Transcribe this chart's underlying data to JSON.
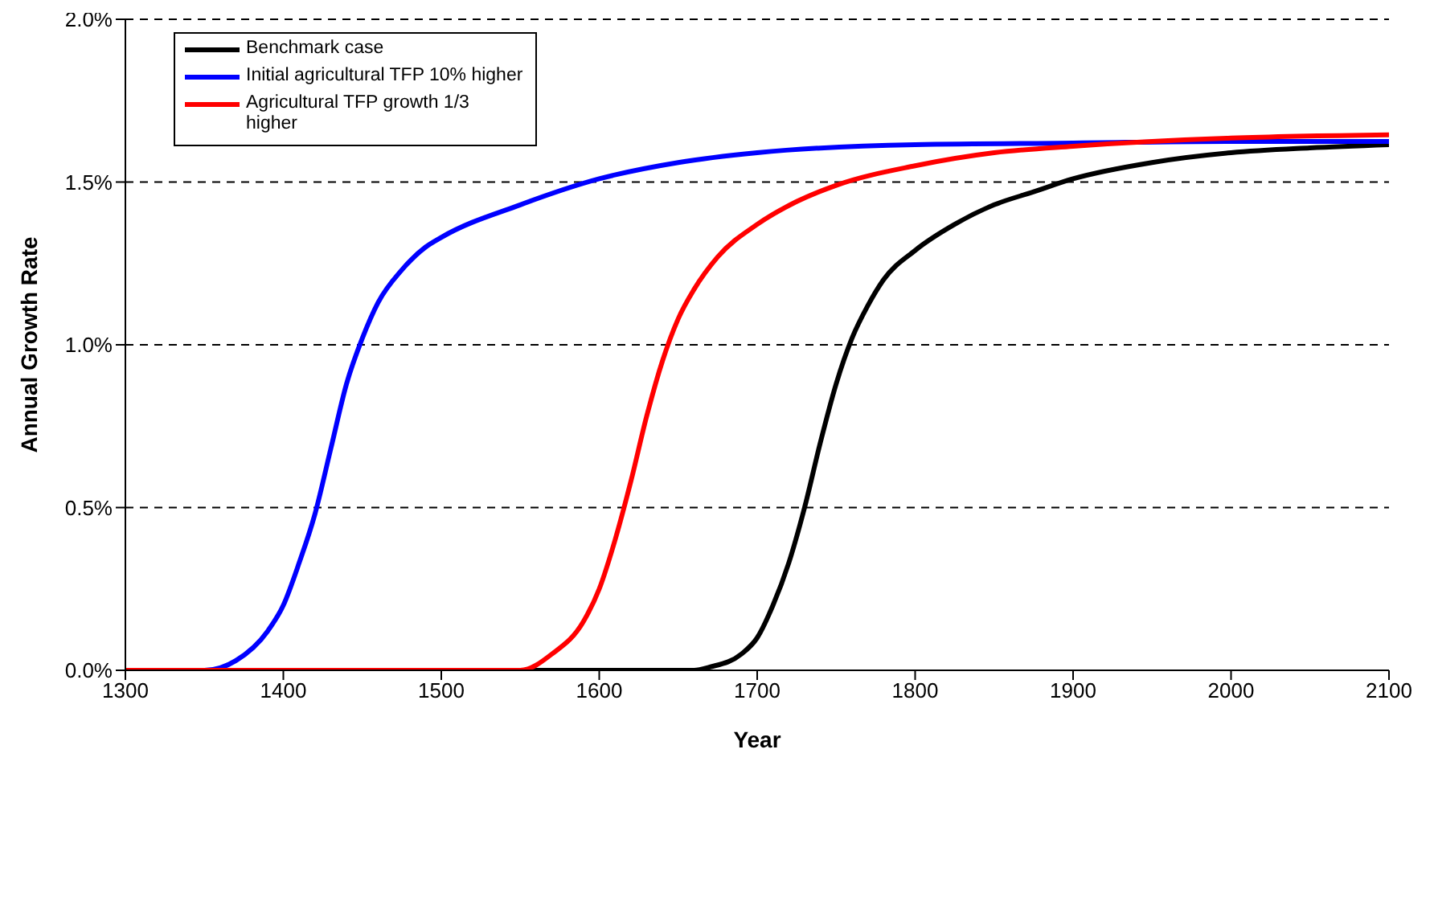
{
  "chart_data": {
    "type": "line",
    "xlabel": "Year",
    "ylabel": "Annual Growth Rate",
    "xlim": [
      1300,
      2100
    ],
    "xticks": [
      1300,
      1400,
      1500,
      1600,
      1700,
      1800,
      1900,
      2000,
      2100
    ],
    "ylim": [
      0,
      2
    ],
    "yticks": [
      {
        "value": 0,
        "label": "0.0%"
      },
      {
        "value": 0.5,
        "label": "0.5%"
      },
      {
        "value": 1,
        "label": "1.0%"
      },
      {
        "value": 1.5,
        "label": "1.5%"
      },
      {
        "value": 2,
        "label": "2.0%"
      }
    ],
    "grid": "y",
    "legend": "top left",
    "marker": "none",
    "line_style": "solid",
    "series": [
      {
        "name": "Benchmark case",
        "color": "#000000",
        "x": [
          1300,
          1400,
          1500,
          1600,
          1640,
          1660,
          1670,
          1690,
          1700,
          1710,
          1720,
          1730,
          1740,
          1750,
          1760,
          1770,
          1780,
          1800,
          1825,
          1850,
          1875,
          1900,
          1950,
          2000,
          2050,
          2100
        ],
        "values": [
          0,
          0,
          0,
          0,
          0,
          0,
          0.01,
          0.05,
          0.1,
          0.2,
          0.33,
          0.5,
          0.7,
          0.88,
          1.02,
          1.12,
          1.2,
          1.29,
          1.37,
          1.43,
          1.47,
          1.51,
          1.56,
          1.59,
          1.605,
          1.615
        ]
      },
      {
        "name": "Initial agricultural TFP 10% higher",
        "color": "#0000ff",
        "x": [
          1300,
          1340,
          1350,
          1370,
          1390,
          1400,
          1410,
          1420,
          1430,
          1440,
          1450,
          1460,
          1475,
          1490,
          1500,
          1550,
          1600,
          1650,
          1700,
          1800,
          1900,
          2000,
          2100
        ],
        "values": [
          0,
          0,
          0,
          0.03,
          0.12,
          0.2,
          0.33,
          0.48,
          0.68,
          0.88,
          1.02,
          1.13,
          1.23,
          1.3,
          1.33,
          1.43,
          1.51,
          1.56,
          1.59,
          1.615,
          1.62,
          1.625,
          1.625
        ]
      },
      {
        "name": "Agricultural TFP growth 1/3 higher",
        "color": "#ff0000",
        "x": [
          1300,
          1400,
          1500,
          1550,
          1570,
          1590,
          1600,
          1610,
          1620,
          1630,
          1640,
          1650,
          1660,
          1675,
          1700,
          1725,
          1750,
          1800,
          1850,
          1900,
          2000,
          2100
        ],
        "values": [
          0,
          0,
          0,
          0,
          0.05,
          0.15,
          0.25,
          0.4,
          0.58,
          0.78,
          0.95,
          1.08,
          1.17,
          1.27,
          1.37,
          1.44,
          1.49,
          1.55,
          1.59,
          1.61,
          1.635,
          1.645
        ]
      }
    ]
  }
}
